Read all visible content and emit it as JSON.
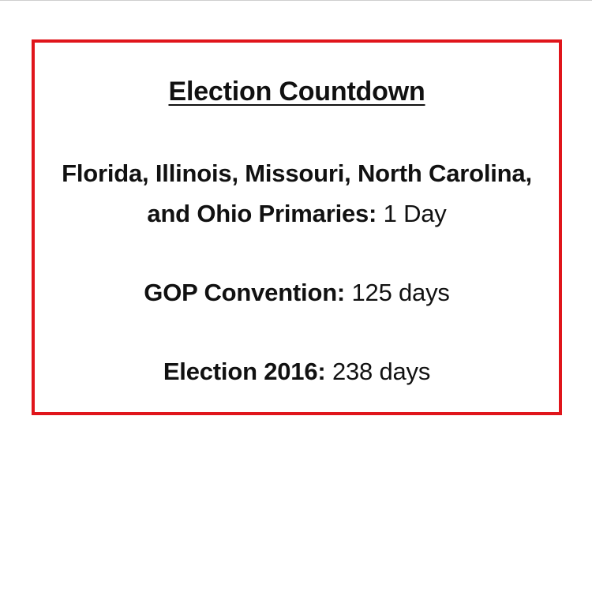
{
  "title": "Election Countdown",
  "entries": [
    {
      "label": "Florida, Illinois, Missouri, North Carolina, and Ohio Primaries:",
      "value": "1 Day"
    },
    {
      "label": "GOP Convention:",
      "value": "125 days"
    },
    {
      "label": "Election 2016:",
      "value": "238 days"
    }
  ],
  "colors": {
    "border": "#e0151b",
    "text": "#111111",
    "background": "#ffffff"
  }
}
